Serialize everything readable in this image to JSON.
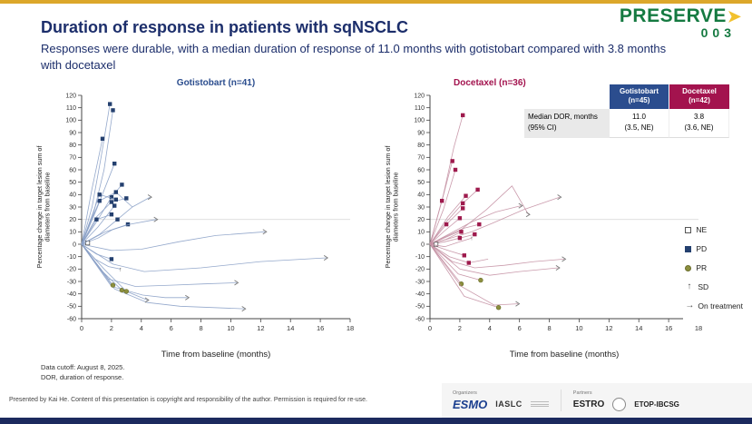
{
  "brand": {
    "logo_text": "PRESERVE",
    "logo_arrow": "➤",
    "logo_number": "003"
  },
  "header": {
    "title": "Duration of response in patients with sqNSCLC",
    "subtitle": "Responses were durable, with a median duration of response of 11.0 months with gotistobart compared with 3.8 months with docetaxel"
  },
  "colors": {
    "navy_text": "#1c2e6b",
    "gotistobart": "#2b4d8e",
    "docetaxel": "#a3134e",
    "gotistobart_line": "#8aa0c6",
    "gotistobart_marker": "#24406f",
    "docetaxel_line": "#c490a3",
    "docetaxel_marker": "#9e1a4d",
    "pr_olive": "#8c8f3e",
    "top_strip_gold": "#dca72b",
    "bottom_strip_navy": "#1c2a5e",
    "logo_green": "#157a41"
  },
  "dor_table": {
    "columns": [
      {
        "name": "Gotistobart",
        "n": "(n=45)"
      },
      {
        "name": "Docetaxel",
        "n": "(n=42)"
      }
    ],
    "row_label_line1": "Median DOR, months",
    "row_label_line2": "(95% CI)",
    "values": [
      {
        "median": "11.0",
        "ci": "(3.5, NE)"
      },
      {
        "median": "3.8",
        "ci": "(3.6, NE)"
      }
    ]
  },
  "legend": {
    "items": [
      {
        "key": "NE",
        "label": "NE"
      },
      {
        "key": "PD",
        "label": "PD"
      },
      {
        "key": "PR",
        "label": "PR"
      },
      {
        "key": "SD",
        "label": "SD"
      },
      {
        "key": "arrow",
        "label": "On treatment"
      }
    ]
  },
  "footnotes": [
    "Data cutoff: August 8, 2025.",
    "DOR, duration of response."
  ],
  "footer": {
    "presented": "Presented by Kai He. Content of this presentation is copyright and responsibility of the author. Permission is required for re-use.",
    "organizers_label": "Organizers",
    "partners_label": "Partners",
    "esmo": "ESMO",
    "iaslc": "IASLC",
    "estro": "ESTRO",
    "etop": "ETOP-IBCSG"
  },
  "chart_data": [
    {
      "type": "line",
      "title": "Gotistobart (n=41)",
      "xlabel": "Time from baseline (months)",
      "ylabel": "Percentage change in target lesion sum of diameters from baseline",
      "ylabel_lines": [
        "Percentage change in target lesion sum of",
        "diameters from baseline"
      ],
      "xlim": [
        0,
        18
      ],
      "ylim": [
        -60,
        120
      ],
      "xticks": [
        0,
        2,
        4,
        6,
        8,
        10,
        12,
        14,
        16,
        18
      ],
      "yticks": [
        -60,
        -50,
        -40,
        -30,
        -20,
        -10,
        0,
        10,
        20,
        30,
        40,
        50,
        60,
        70,
        80,
        90,
        100,
        110,
        120
      ],
      "reference_lines": [
        20
      ],
      "grid": false,
      "line_color": "#8aa0c6",
      "marker_color": "#24406f",
      "series": [
        {
          "x": [
            0,
            0.7,
            1.3,
            1.9
          ],
          "y": [
            0,
            30,
            70,
            113
          ],
          "markers": [
            [
              3,
              "PD"
            ]
          ]
        },
        {
          "x": [
            0,
            0.8,
            1.5,
            2.1
          ],
          "y": [
            0,
            25,
            60,
            108
          ],
          "markers": [
            [
              3,
              "PD"
            ]
          ]
        },
        {
          "x": [
            0,
            0.7,
            1.4
          ],
          "y": [
            0,
            45,
            85
          ],
          "markers": [
            [
              2,
              "PD"
            ]
          ]
        },
        {
          "x": [
            0,
            1.0,
            2.2
          ],
          "y": [
            0,
            28,
            65
          ],
          "markers": [
            [
              2,
              "PD"
            ]
          ]
        },
        {
          "x": [
            0,
            1.0,
            2.0,
            2.7
          ],
          "y": [
            0,
            18,
            38,
            48
          ],
          "markers": [
            [
              2,
              "PD"
            ],
            [
              3,
              "PD"
            ]
          ]
        },
        {
          "x": [
            0,
            1.2,
            2.3,
            3.4
          ],
          "y": [
            0,
            35,
            42,
            30
          ],
          "markers": [
            [
              1,
              "PD"
            ],
            [
              2,
              "PD"
            ]
          ]
        },
        {
          "x": [
            0,
            1.0,
            2.0,
            3.0
          ],
          "y": [
            0,
            22,
            34,
            37
          ],
          "markers": [
            [
              2,
              "PD"
            ],
            [
              3,
              "PD"
            ]
          ]
        },
        {
          "x": [
            0,
            1.1,
            2.2
          ],
          "y": [
            0,
            14,
            31
          ],
          "markers": [
            [
              2,
              "PD"
            ]
          ]
        },
        {
          "x": [
            0,
            1.2,
            2.4,
            3.4,
            4.6
          ],
          "y": [
            0,
            8,
            20,
            30,
            38
          ],
          "markers": [
            [
              2,
              "PD"
            ]
          ],
          "arrow": true
        },
        {
          "x": [
            0,
            1.0,
            2.0
          ],
          "y": [
            0,
            20,
            24
          ],
          "markers": [
            [
              1,
              "PD"
            ],
            [
              2,
              "PD"
            ]
          ]
        },
        {
          "x": [
            0,
            1.1,
            2.1,
            3.1
          ],
          "y": [
            0,
            5,
            12,
            16
          ],
          "markers": [
            [
              3,
              "PD"
            ]
          ]
        },
        {
          "x": [
            0,
            1.0,
            2.0
          ],
          "y": [
            0,
            -8,
            -12
          ],
          "markers": [
            [
              2,
              "PD"
            ]
          ]
        },
        {
          "x": [
            0,
            1.2,
            2.3
          ],
          "y": [
            0,
            40,
            36
          ],
          "markers": [
            [
              1,
              "PD"
            ],
            [
              2,
              "PD"
            ]
          ]
        },
        {
          "x": [
            0,
            2.0,
            4.0,
            6.5,
            9.0,
            12.3
          ],
          "y": [
            0,
            -5,
            -4,
            2,
            7,
            10
          ],
          "arrow": true
        },
        {
          "x": [
            0,
            2.1,
            4.2,
            8.0,
            12.0,
            16.4
          ],
          "y": [
            0,
            -16,
            -22,
            -19,
            -14,
            -11
          ],
          "arrow": true
        },
        {
          "x": [
            0,
            1.8,
            3.6,
            6.0,
            8.2,
            10.4
          ],
          "y": [
            0,
            -28,
            -34,
            -33,
            -32,
            -31
          ],
          "arrow": true
        },
        {
          "x": [
            0,
            2.0,
            4.1,
            5.6,
            7.1
          ],
          "y": [
            0,
            -34,
            -41,
            -43,
            -43
          ],
          "arrow": true
        },
        {
          "x": [
            0,
            2.2,
            4.4,
            6.6,
            8.7,
            10.9
          ],
          "y": [
            0,
            -36,
            -47,
            -50,
            -51,
            -52
          ],
          "arrow": true
        },
        {
          "x": [
            0,
            2.1
          ],
          "y": [
            0,
            -33
          ],
          "markers": [
            [
              1,
              "PR"
            ]
          ]
        },
        {
          "x": [
            0,
            1.4,
            2.7
          ],
          "y": [
            0,
            -22,
            -37
          ],
          "markers": [
            [
              2,
              "PR"
            ]
          ]
        },
        {
          "x": [
            0,
            1.5,
            3.0,
            4.4
          ],
          "y": [
            0,
            -20,
            -38,
            -45
          ],
          "markers": [
            [
              2,
              "PR"
            ]
          ],
          "arrow": true
        },
        {
          "x": [
            0,
            0.4
          ],
          "y": [
            0,
            1
          ],
          "markers": [
            [
              1,
              "NE"
            ]
          ]
        },
        {
          "x": [
            0,
            1.6,
            3.2,
            5.0
          ],
          "y": [
            0,
            10,
            16,
            20
          ],
          "arrow": true
        },
        {
          "x": [
            0,
            0.9,
            1.8,
            2.6
          ],
          "y": [
            0,
            -12,
            -18,
            -20
          ],
          "markers": [
            [
              3,
              "SD"
            ]
          ]
        }
      ]
    },
    {
      "type": "line",
      "title": "Docetaxel (n=36)",
      "xlabel": "Time from baseline (months)",
      "ylabel": "Percentage change in target lesion sum of diameters from baseline",
      "ylabel_lines": [
        "Percentage change in target lesion sum of",
        "diameters from baseline"
      ],
      "xlim": [
        0,
        18
      ],
      "ylim": [
        -60,
        120
      ],
      "xticks": [
        0,
        2,
        4,
        6,
        8,
        10,
        12,
        14,
        16,
        18
      ],
      "yticks": [
        -60,
        -50,
        -40,
        -30,
        -20,
        -10,
        0,
        10,
        20,
        30,
        40,
        50,
        60,
        70,
        80,
        90,
        100,
        110,
        120
      ],
      "reference_lines": [
        20
      ],
      "grid": false,
      "line_color": "#c490a3",
      "marker_color": "#9e1a4d",
      "series": [
        {
          "x": [
            0,
            0.9,
            1.6,
            2.2
          ],
          "y": [
            0,
            40,
            78,
            104
          ],
          "markers": [
            [
              3,
              "PD"
            ]
          ]
        },
        {
          "x": [
            0,
            0.8,
            1.5
          ],
          "y": [
            0,
            35,
            67
          ],
          "markers": [
            [
              1,
              "PD"
            ],
            [
              2,
              "PD"
            ]
          ]
        },
        {
          "x": [
            0,
            0.9,
            1.7
          ],
          "y": [
            0,
            28,
            60
          ],
          "markers": [
            [
              2,
              "PD"
            ]
          ]
        },
        {
          "x": [
            0,
            1.1,
            2.2,
            3.2
          ],
          "y": [
            0,
            18,
            33,
            44
          ],
          "markers": [
            [
              2,
              "PD"
            ],
            [
              3,
              "PD"
            ]
          ]
        },
        {
          "x": [
            0,
            1.9,
            3.8,
            5.5,
            6.6
          ],
          "y": [
            0,
            10,
            28,
            47,
            24
          ],
          "arrow": true
        },
        {
          "x": [
            0,
            1.2,
            2.4
          ],
          "y": [
            0,
            22,
            39
          ],
          "markers": [
            [
              2,
              "PD"
            ]
          ]
        },
        {
          "x": [
            0,
            1.1,
            2.2
          ],
          "y": [
            0,
            16,
            29
          ],
          "markers": [
            [
              1,
              "PD"
            ],
            [
              2,
              "PD"
            ]
          ]
        },
        {
          "x": [
            0,
            1.0,
            2.0
          ],
          "y": [
            0,
            11,
            21
          ],
          "markers": [
            [
              2,
              "PD"
            ]
          ]
        },
        {
          "x": [
            0,
            1.4,
            2.8,
            4.2,
            6.3,
            8.7
          ],
          "y": [
            0,
            5,
            10,
            17,
            28,
            38
          ],
          "arrow": true
        },
        {
          "x": [
            0,
            1.2,
            2.3,
            3.3
          ],
          "y": [
            0,
            7,
            13,
            16
          ],
          "markers": [
            [
              3,
              "PD"
            ]
          ]
        },
        {
          "x": [
            0,
            1.1,
            2.1
          ],
          "y": [
            0,
            4,
            10
          ],
          "markers": [
            [
              2,
              "PD"
            ]
          ]
        },
        {
          "x": [
            0,
            1.0,
            2.0,
            3.0
          ],
          "y": [
            0,
            2,
            5,
            8
          ],
          "markers": [
            [
              2,
              "PD"
            ],
            [
              3,
              "PD"
            ]
          ]
        },
        {
          "x": [
            0,
            1.2,
            2.3
          ],
          "y": [
            0,
            -5,
            -9
          ],
          "markers": [
            [
              2,
              "PD"
            ]
          ]
        },
        {
          "x": [
            0,
            1.3,
            2.6,
            3.9
          ],
          "y": [
            0,
            -10,
            -15,
            -12
          ],
          "markers": [
            [
              2,
              "PD"
            ]
          ]
        },
        {
          "x": [
            0,
            1.5,
            3.0,
            5.0,
            7.0,
            9.0
          ],
          "y": [
            0,
            -14,
            -19,
            -17,
            -14,
            -12
          ],
          "arrow": true
        },
        {
          "x": [
            0,
            2.0,
            4.0,
            6.0,
            8.6
          ],
          "y": [
            0,
            -20,
            -25,
            -22,
            -19
          ],
          "arrow": true
        },
        {
          "x": [
            0,
            1.9,
            3.4
          ],
          "y": [
            0,
            -24,
            -29
          ],
          "markers": [
            [
              2,
              "PR"
            ]
          ]
        },
        {
          "x": [
            0,
            2.1
          ],
          "y": [
            0,
            -32
          ],
          "markers": [
            [
              1,
              "PR"
            ]
          ]
        },
        {
          "x": [
            0,
            2.1,
            4.3,
            5.9
          ],
          "y": [
            0,
            -34,
            -49,
            -48
          ],
          "arrow": true
        },
        {
          "x": [
            0,
            2.3,
            4.6
          ],
          "y": [
            0,
            -42,
            -51
          ],
          "markers": [
            [
              2,
              "PR"
            ]
          ]
        },
        {
          "x": [
            0,
            0.4
          ],
          "y": [
            0,
            0
          ],
          "markers": [
            [
              1,
              "NE"
            ]
          ]
        },
        {
          "x": [
            0,
            1.4,
            2.8,
            4.4,
            6.1
          ],
          "y": [
            0,
            9,
            18,
            26,
            31
          ],
          "arrow": true
        },
        {
          "x": [
            0,
            1.0,
            2.0,
            2.8
          ],
          "y": [
            0,
            -2,
            2,
            5
          ],
          "markers": [
            [
              3,
              "SD"
            ]
          ]
        }
      ]
    }
  ]
}
